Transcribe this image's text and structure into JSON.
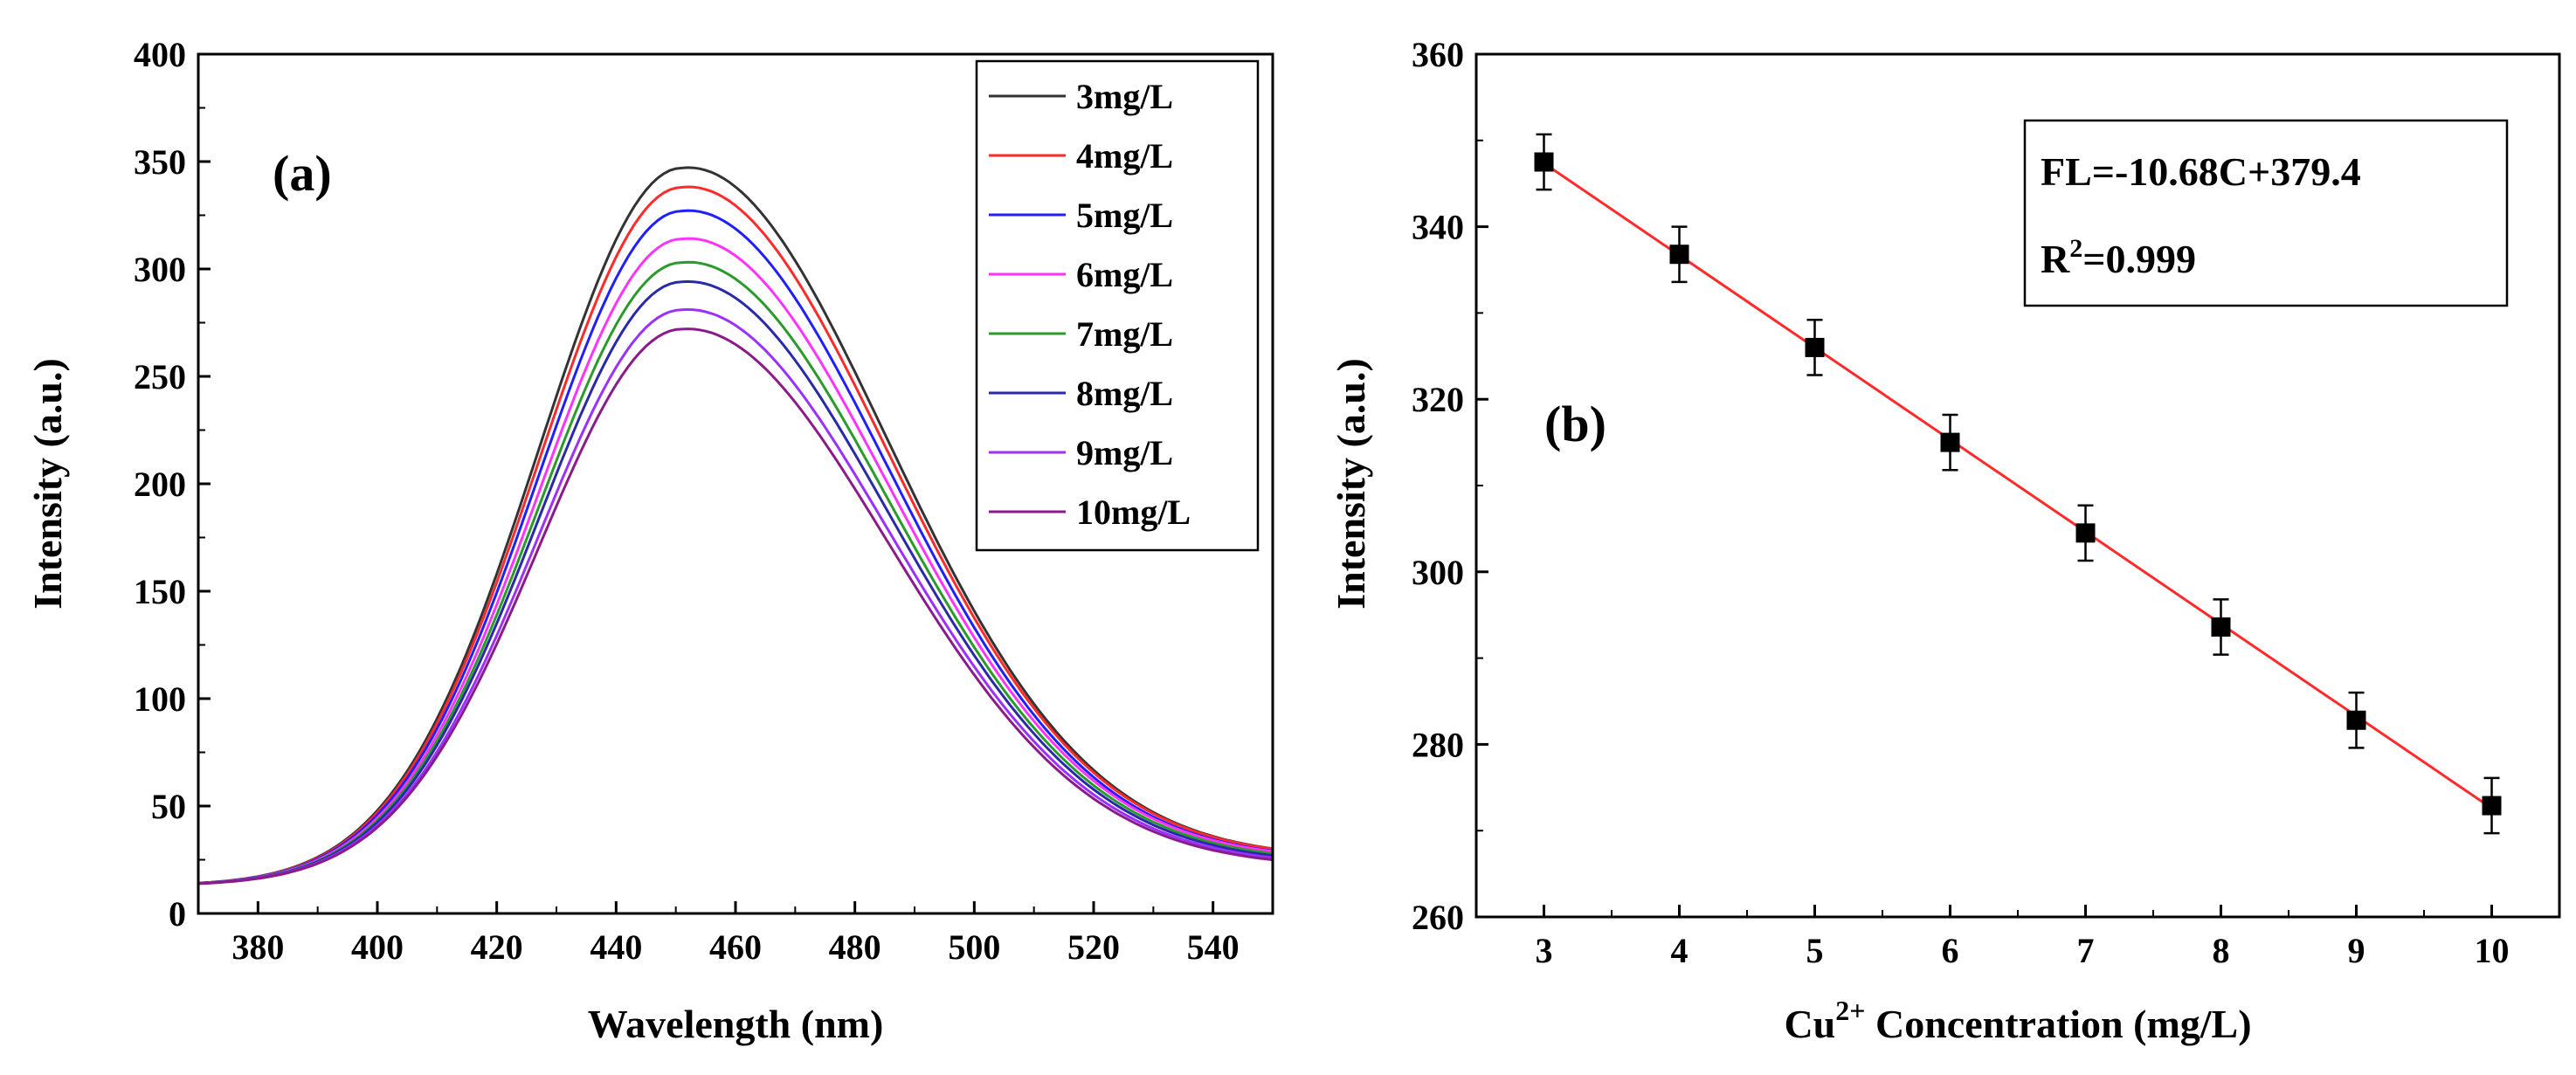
{
  "chart_data": [
    {
      "type": "line",
      "panel_label": "(a)",
      "title": "",
      "xlabel": "Wavelength (nm)",
      "ylabel": "Intensity (a.u.)",
      "xlim": [
        370,
        550
      ],
      "ylim": [
        0,
        400
      ],
      "x_ticks": [
        "380",
        "400",
        "420",
        "440",
        "460",
        "480",
        "500",
        "520",
        "540"
      ],
      "y_ticks": [
        "0",
        "50",
        "100",
        "150",
        "200",
        "250",
        "300",
        "350",
        "400"
      ],
      "legend_position": "top-right",
      "baseline": 13,
      "series": [
        {
          "name": "3mg/L",
          "color": "#333333",
          "peak_x": 451,
          "peak_y": 347,
          "end_y": 28
        },
        {
          "name": "4mg/L",
          "color": "#ff2a2a",
          "peak_x": 451,
          "peak_y": 338,
          "end_y": 28
        },
        {
          "name": "5mg/L",
          "color": "#1f1fff",
          "peak_x": 451,
          "peak_y": 327,
          "end_y": 27
        },
        {
          "name": "6mg/L",
          "color": "#ff33ff",
          "peak_x": 451,
          "peak_y": 314,
          "end_y": 27
        },
        {
          "name": "7mg/L",
          "color": "#2a9a2a",
          "peak_x": 451,
          "peak_y": 303,
          "end_y": 26
        },
        {
          "name": "8mg/L",
          "color": "#2a2aa8",
          "peak_x": 451,
          "peak_y": 294,
          "end_y": 25
        },
        {
          "name": "9mg/L",
          "color": "#9b30ff",
          "peak_x": 451,
          "peak_y": 281,
          "end_y": 24
        },
        {
          "name": "10mg/L",
          "color": "#8b1a8b",
          "peak_x": 451,
          "peak_y": 272,
          "end_y": 23
        }
      ]
    },
    {
      "type": "scatter",
      "panel_label": "(b)",
      "title": "",
      "xlabel_prefix": "Cu",
      "xlabel_sup": "2+",
      "xlabel_suffix": " Concentration (mg/L)",
      "ylabel": "Intensity (a.u.)",
      "xlim": [
        2.5,
        10.5
      ],
      "ylim": [
        260,
        360
      ],
      "x_ticks": [
        "3",
        "4",
        "5",
        "6",
        "7",
        "8",
        "9",
        "10"
      ],
      "y_ticks": [
        "260",
        "280",
        "300",
        "320",
        "340",
        "360"
      ],
      "x": [
        3,
        4,
        5,
        6,
        7,
        8,
        9,
        10
      ],
      "y": [
        347.5,
        336.8,
        326.0,
        315.0,
        304.5,
        293.6,
        282.8,
        272.9
      ],
      "error": [
        3.2,
        3.2,
        3.2,
        3.2,
        3.2,
        3.2,
        3.2,
        3.2
      ],
      "fit": {
        "slope": -10.68,
        "intercept": 379.4,
        "color": "#ff2a2a"
      },
      "equation": "FL=-10.68C+379.4",
      "r2_prefix": "R",
      "r2_sup": "2",
      "r2_suffix": "=0.999"
    }
  ]
}
